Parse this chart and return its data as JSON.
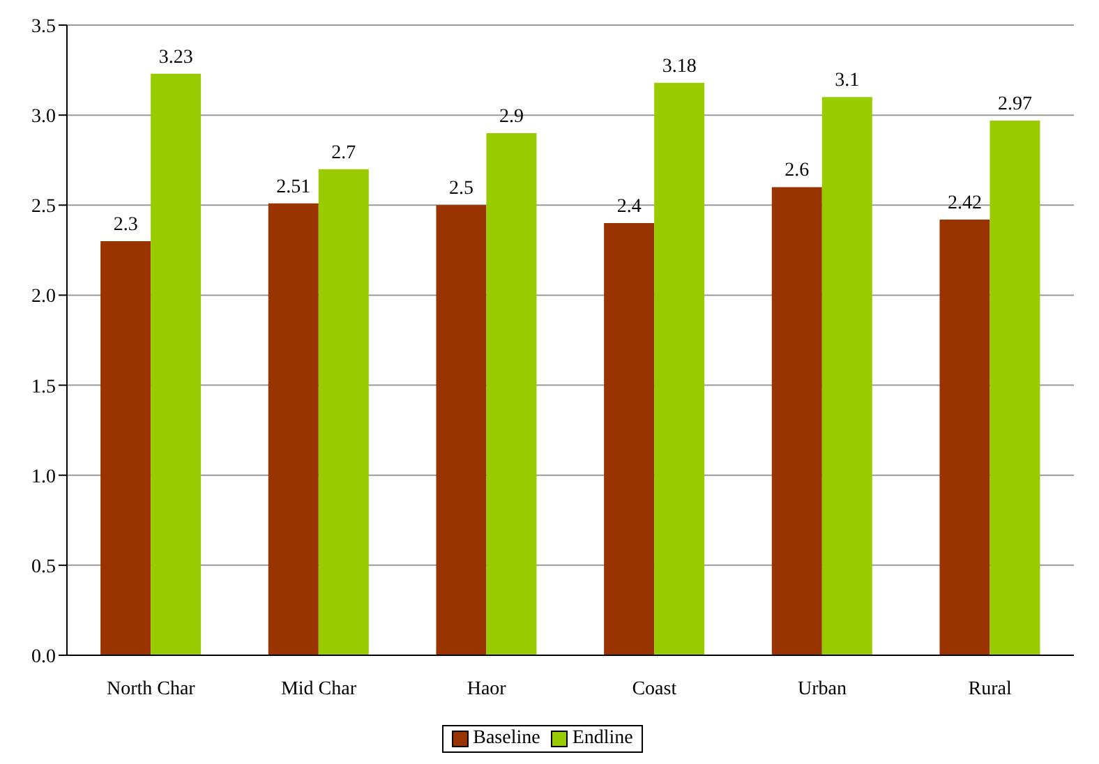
{
  "chart_data": {
    "type": "bar",
    "categories": [
      "North Char",
      "Mid Char",
      "Haor",
      "Coast",
      "Urban",
      "Rural"
    ],
    "series": [
      {
        "name": "Baseline",
        "color": "#993300",
        "values": [
          2.3,
          2.51,
          2.5,
          2.4,
          2.6,
          2.42
        ]
      },
      {
        "name": "Endline",
        "color": "#99cc00",
        "values": [
          3.23,
          2.7,
          2.9,
          3.18,
          3.1,
          2.97
        ]
      }
    ],
    "ylim": [
      0,
      3.5
    ],
    "yticks": [
      {
        "value": 0,
        "label": "0.0"
      },
      {
        "value": 0.5,
        "label": "0.5"
      },
      {
        "value": 1,
        "label": "1.0"
      },
      {
        "value": 1.5,
        "label": "1.5"
      },
      {
        "value": 2,
        "label": "2.0"
      },
      {
        "value": 2.5,
        "label": "2.5"
      },
      {
        "value": 3,
        "label": "3.0"
      },
      {
        "value": 3.5,
        "label": "3.5"
      }
    ],
    "grid": "y",
    "legend": "bottom",
    "data_labels": true
  }
}
